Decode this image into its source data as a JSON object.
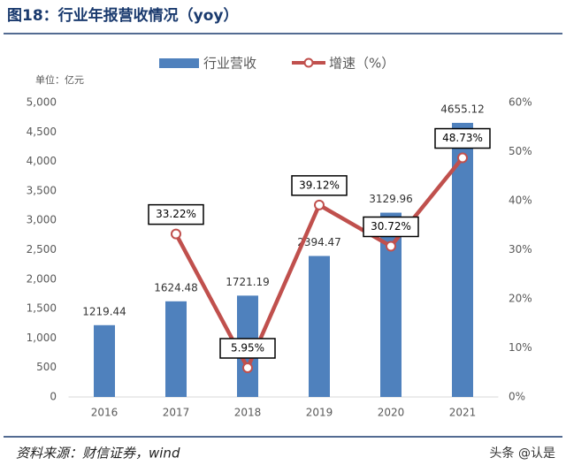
{
  "title": "图18：行业年报营收情况（yoy）",
  "chart_data": {
    "type": "bar_line",
    "unit_label": "单位：亿元",
    "categories": [
      "2016",
      "2017",
      "2018",
      "2019",
      "2020",
      "2021"
    ],
    "series": [
      {
        "name": "行业营收",
        "color": "#4f81bd",
        "type": "bar",
        "values": [
          1219.44,
          1624.48,
          1721.19,
          2394.47,
          3129.96,
          4655.12
        ]
      },
      {
        "name": "增速（%）",
        "color": "#c0504d",
        "type": "line",
        "axis": "y2",
        "values": [
          null,
          33.22,
          5.95,
          39.12,
          30.72,
          48.73
        ],
        "value_labels": [
          null,
          "33.22%",
          "5.95%",
          "39.12%",
          "30.72%",
          "48.73%"
        ]
      }
    ],
    "ylim": [
      0,
      5000
    ],
    "yticks": [
      0,
      500,
      {
        "value": 1000,
        "label": "1,000"
      },
      {
        "value": 1500,
        "label": "1,500"
      },
      {
        "value": 2000,
        "label": "2,000"
      },
      {
        "value": 2500,
        "label": "2,500"
      },
      {
        "value": 3000,
        "label": "3,000"
      },
      {
        "value": 3500,
        "label": "3,500"
      },
      {
        "value": 4000,
        "label": "4,000"
      },
      {
        "value": 4500,
        "label": "4,500"
      },
      {
        "value": 5000,
        "label": "5,000"
      }
    ],
    "y2lim": [
      0,
      60
    ],
    "y2ticks": [
      {
        "value": 0,
        "label": "0%"
      },
      {
        "value": 10,
        "label": "10%"
      },
      {
        "value": 20,
        "label": "20%"
      },
      {
        "value": 30,
        "label": "30%"
      },
      {
        "value": 40,
        "label": "40%"
      },
      {
        "value": 50,
        "label": "50%"
      },
      {
        "value": 60,
        "label": "60%"
      }
    ],
    "grid": false,
    "legend": "top"
  },
  "source": "资料来源：财信证券，wind",
  "watermark": "头条 @认是"
}
